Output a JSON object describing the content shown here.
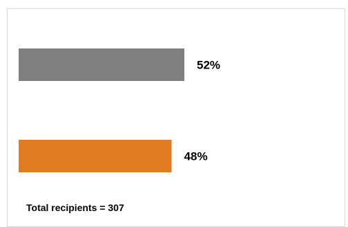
{
  "chart_data": {
    "type": "bar",
    "orientation": "horizontal",
    "categories": [
      "",
      ""
    ],
    "values": [
      52,
      48
    ],
    "data_labels": [
      "52%",
      "48%"
    ],
    "colors": [
      "#808080",
      "#e07b22"
    ],
    "xlim": [
      0,
      100
    ],
    "grid": false,
    "legend": "none",
    "title": "",
    "xlabel": "",
    "ylabel": ""
  },
  "footnote": "Total recipients = 307"
}
